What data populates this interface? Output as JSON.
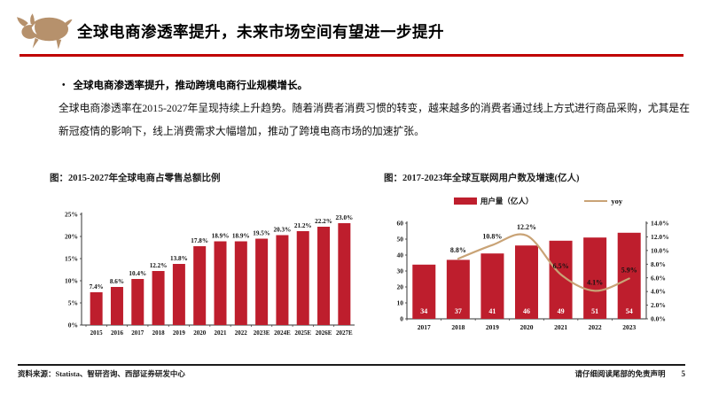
{
  "header": {
    "title": "全球电商渗透率提升，未来市场空间有望进一步提升",
    "logo_icon": "bull-logo-icon",
    "accent_color": "#c00000",
    "logo_color": "#b6916c"
  },
  "body": {
    "bullet_heading": "全球电商渗透率提升，推动跨境电商行业规模增长。",
    "paragraph": "全球电商渗透率在2015-2027年呈现持续上升趋势。随着消费者消费习惯的转变，越来越多的消费者通过线上方式进行商品采购，尤其是在新冠疫情的影响下，线上消费需求大幅增加，推动了跨境电商市场的加速扩张。"
  },
  "charts": {
    "left_caption": "图：2015-2027年全球电商占零售总额比例",
    "right_caption": "图：2017-2023年全球互联网用户数及增速(亿人)"
  },
  "chart_data": [
    {
      "type": "bar",
      "title": "2015-2027年全球电商占零售总额比例",
      "categories": [
        "2015",
        "2016",
        "2017",
        "2018",
        "2019",
        "2020",
        "2021",
        "2022",
        "2023E",
        "2024E",
        "2025E",
        "2026E",
        "2027E"
      ],
      "values": [
        7.4,
        8.6,
        10.4,
        12.2,
        13.8,
        17.8,
        18.9,
        18.9,
        19.5,
        20.3,
        21.2,
        22.2,
        23.0
      ],
      "data_labels": [
        "7.4%",
        "8.6%",
        "10.4%",
        "12.2%",
        "13.8%",
        "17.8%",
        "18.9%",
        "18.9%",
        "19.5%",
        "20.3%",
        "21.2%",
        "22.2%",
        "23.0%"
      ],
      "ylim": [
        0,
        25
      ],
      "ytick_labels": [
        "0%",
        "5%",
        "10%",
        "15%",
        "20%",
        "25%"
      ],
      "bar_color": "#be1e2d",
      "grid": false,
      "legend_position": "none"
    },
    {
      "type": "combo-bar-line",
      "title": "2017-2023年全球互联网用户数及增速(亿人)",
      "categories": [
        "2017",
        "2018",
        "2019",
        "2020",
        "2021",
        "2022",
        "2023"
      ],
      "series": [
        {
          "name": "用户量（亿人）",
          "type": "bar",
          "axis": "left",
          "values": [
            34,
            37,
            41,
            46,
            49,
            51,
            54
          ],
          "data_labels": [
            "34",
            "37",
            "41",
            "46",
            "49",
            "51",
            "54"
          ],
          "color": "#be1e2d"
        },
        {
          "name": "yoy",
          "type": "line",
          "axis": "right",
          "values": [
            null,
            8.8,
            10.8,
            12.2,
            6.5,
            4.1,
            5.9
          ],
          "data_labels": [
            null,
            "8.8%",
            "10.8%",
            "12.2%",
            "6.5%",
            "4.1%",
            "5.9%"
          ],
          "color": "#c9a376"
        }
      ],
      "left_axis": {
        "lim": [
          0,
          60
        ],
        "tick_labels": [
          "0",
          "10",
          "20",
          "30",
          "40",
          "50",
          "60"
        ]
      },
      "right_axis": {
        "lim": [
          0,
          14
        ],
        "tick_labels": [
          "0.0%",
          "2.0%",
          "4.0%",
          "6.0%",
          "8.0%",
          "10.0%",
          "12.0%",
          "14.0%"
        ]
      },
      "legend_position": "top",
      "grid": false
    }
  ],
  "footer": {
    "source": "资料来源：Statista、智研咨询、西部证券研发中心",
    "disclaimer": "请仔细阅读尾部的免责声明",
    "page_number": "5"
  }
}
